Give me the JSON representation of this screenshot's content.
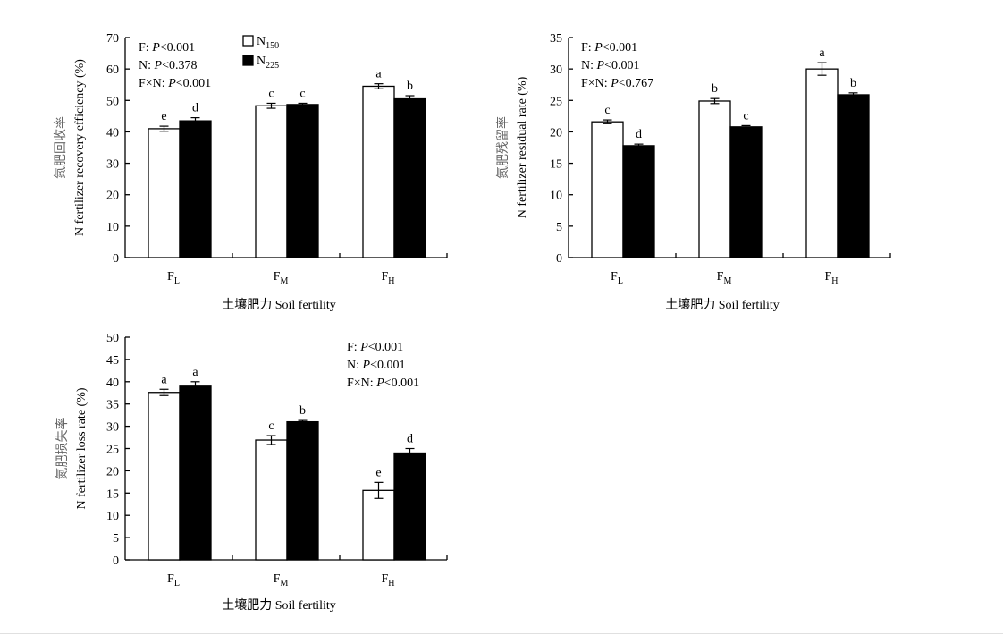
{
  "chart_data": [
    {
      "type": "bar",
      "ylabel_cn": "氮肥回收率",
      "ylabel_en": "N fertilizer recovery efficiency (%)",
      "xlabel": "土壤肥力 Soil fertility",
      "ylim": [
        0,
        70
      ],
      "yticks": [
        0,
        10,
        20,
        30,
        40,
        50,
        60,
        70
      ],
      "categories": [
        {
          "base": "F",
          "sub": "L"
        },
        {
          "base": "F",
          "sub": "M"
        },
        {
          "base": "F",
          "sub": "H"
        }
      ],
      "series": [
        {
          "name": "N",
          "sub": "150",
          "style": "open",
          "values": [
            41,
            48.3,
            54.5
          ],
          "errors": [
            0.8,
            0.8,
            0.8
          ],
          "letters": [
            "e",
            "c",
            "a"
          ]
        },
        {
          "name": "N",
          "sub": "225",
          "style": "filled",
          "values": [
            43.5,
            48.7,
            50.5
          ],
          "errors": [
            1.0,
            0.4,
            1.0
          ],
          "letters": [
            "d",
            "c",
            "b"
          ]
        }
      ],
      "stats": [
        {
          "factor": "F: ",
          "p": "P",
          "rest": "<0.001"
        },
        {
          "factor": "N: ",
          "p": "P",
          "rest": "<0.378"
        },
        {
          "factor": "F×N: ",
          "p": "P",
          "rest": "<0.001"
        }
      ],
      "legend": true
    },
    {
      "type": "bar",
      "ylabel_cn": "氮肥残留率",
      "ylabel_en": "N fertilizer residual rate (%)",
      "xlabel": "土壤肥力 Soil fertility",
      "ylim": [
        0,
        35
      ],
      "yticks": [
        0,
        5,
        10,
        15,
        20,
        25,
        30,
        35
      ],
      "categories": [
        {
          "base": "F",
          "sub": "L"
        },
        {
          "base": "F",
          "sub": "M"
        },
        {
          "base": "F",
          "sub": "H"
        }
      ],
      "series": [
        {
          "name": "N",
          "sub": "150",
          "style": "open",
          "values": [
            21.6,
            24.9,
            30.0
          ],
          "errors": [
            0.3,
            0.4,
            1.0
          ],
          "letters": [
            "c",
            "b",
            "a"
          ]
        },
        {
          "name": "N",
          "sub": "225",
          "style": "filled",
          "values": [
            17.8,
            20.8,
            25.9
          ],
          "errors": [
            0.25,
            0.2,
            0.3
          ],
          "letters": [
            "d",
            "c",
            "b"
          ]
        }
      ],
      "stats": [
        {
          "factor": "F: ",
          "p": "P",
          "rest": "<0.001"
        },
        {
          "factor": "N: ",
          "p": "P",
          "rest": "<0.001"
        },
        {
          "factor": "F×N: ",
          "p": "P",
          "rest": "<0.767"
        }
      ],
      "legend": false
    },
    {
      "type": "bar",
      "ylabel_cn": "氮肥损失率",
      "ylabel_en": "N fertilizer loss rate (%)",
      "xlabel": "土壤肥力 Soil fertility",
      "ylim": [
        0,
        50
      ],
      "yticks": [
        0,
        5,
        10,
        15,
        20,
        25,
        30,
        35,
        40,
        45,
        50
      ],
      "categories": [
        {
          "base": "F",
          "sub": "L"
        },
        {
          "base": "F",
          "sub": "M"
        },
        {
          "base": "F",
          "sub": "H"
        }
      ],
      "series": [
        {
          "name": "N",
          "sub": "150",
          "style": "open",
          "values": [
            37.6,
            26.9,
            15.6
          ],
          "errors": [
            0.7,
            1.0,
            1.8
          ],
          "letters": [
            "a",
            "c",
            "e"
          ]
        },
        {
          "name": "N",
          "sub": "225",
          "style": "filled",
          "values": [
            39.0,
            31.0,
            24.0
          ],
          "errors": [
            1.0,
            0.3,
            1.0
          ],
          "letters": [
            "a",
            "b",
            "d"
          ]
        }
      ],
      "stats": [
        {
          "factor": "F: ",
          "p": "P",
          "rest": "<0.001"
        },
        {
          "factor": "N: ",
          "p": "P",
          "rest": "<0.001"
        },
        {
          "factor": "F×N: ",
          "p": "P",
          "rest": "<0.001"
        }
      ],
      "legend": false
    }
  ]
}
